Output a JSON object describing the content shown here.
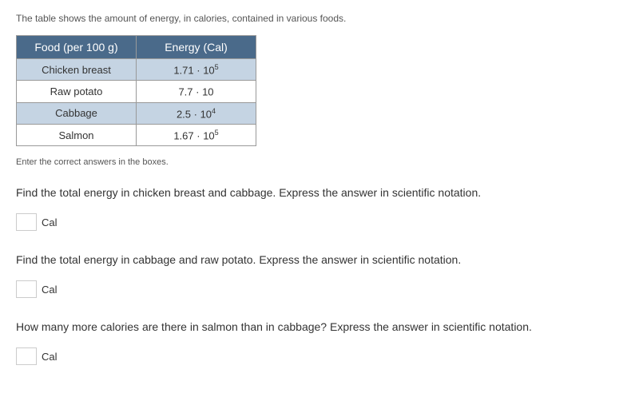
{
  "intro": "The table shows the amount of energy, in calories, contained in various foods.",
  "table": {
    "header_bg": "#4a6a8a",
    "header_fg": "#ffffff",
    "row_alt_bg": "#c5d4e3",
    "row_bg": "#ffffff",
    "border_color": "#999999",
    "col_food_width": 150,
    "col_energy_width": 150,
    "columns": [
      "Food (per 100 g)",
      "Energy (Cal)"
    ],
    "rows": [
      {
        "food": "Chicken breast",
        "mantissa": "1.71",
        "base": "10",
        "exp": "5"
      },
      {
        "food": "Raw potato",
        "mantissa": "7.7",
        "base": "10",
        "exp": ""
      },
      {
        "food": "Cabbage",
        "mantissa": "2.5",
        "base": "10",
        "exp": "4"
      },
      {
        "food": "Salmon",
        "mantissa": "1.67",
        "base": "10",
        "exp": "5"
      }
    ],
    "dot": " · "
  },
  "instruction": "Enter the correct answers in the boxes.",
  "questions": [
    {
      "text": "Find the total energy in chicken breast and cabbage. Express the answer in scientific notation.",
      "unit": "Cal"
    },
    {
      "text": "Find the total energy in cabbage and raw potato. Express the answer in scientific notation.",
      "unit": "Cal"
    },
    {
      "text": "How many more calories are there in salmon than in cabbage? Express the answer in scientific notation.",
      "unit": "Cal"
    }
  ]
}
